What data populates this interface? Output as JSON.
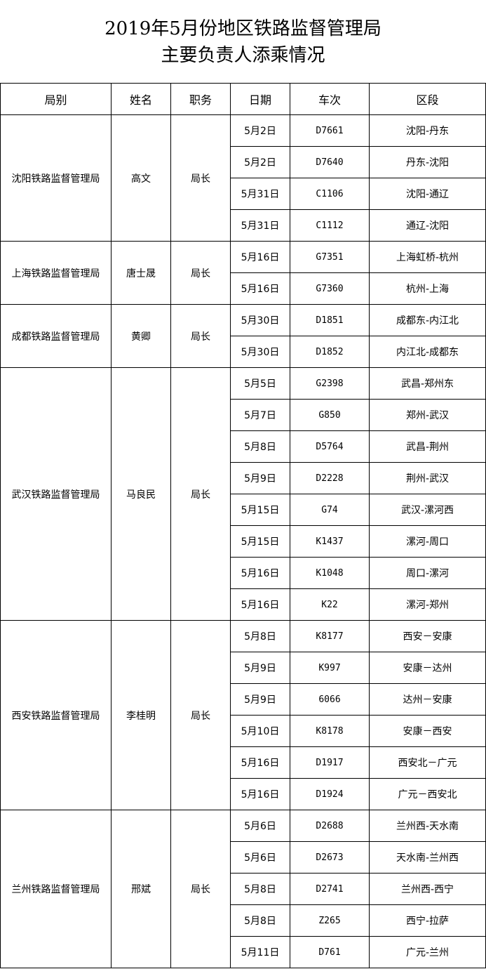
{
  "title": {
    "line1": "2019年5月份地区铁路监督管理局",
    "line2": "主要负责人添乘情况"
  },
  "headers": [
    "局别",
    "姓名",
    "职务",
    "日期",
    "车次",
    "区段"
  ],
  "groups": [
    {
      "bureau": "沈阳铁路监督管理局",
      "name": "高文",
      "position": "局长",
      "trips": [
        {
          "date": "5月2日",
          "train": "D7661",
          "section": "沈阳-丹东"
        },
        {
          "date": "5月2日",
          "train": "D7640",
          "section": "丹东-沈阳"
        },
        {
          "date": "5月31日",
          "train": "C1106",
          "section": "沈阳-通辽"
        },
        {
          "date": "5月31日",
          "train": "C1112",
          "section": "通辽-沈阳"
        }
      ]
    },
    {
      "bureau": "上海铁路监督管理局",
      "name": "唐士晟",
      "position": "局长",
      "trips": [
        {
          "date": "5月16日",
          "train": "G7351",
          "section": "上海虹桥-杭州"
        },
        {
          "date": "5月16日",
          "train": "G7360",
          "section": "杭州-上海"
        }
      ]
    },
    {
      "bureau": "成都铁路监督管理局",
      "name": "黄卿",
      "position": "局长",
      "trips": [
        {
          "date": "5月30日",
          "train": "D1851",
          "section": "成都东-内江北"
        },
        {
          "date": "5月30日",
          "train": "D1852",
          "section": "内江北-成都东"
        }
      ]
    },
    {
      "bureau": "武汉铁路监督管理局",
      "name": "马良民",
      "position": "局长",
      "trips": [
        {
          "date": "5月5日",
          "train": "G2398",
          "section": "武昌-郑州东"
        },
        {
          "date": "5月7日",
          "train": "G850",
          "section": "郑州-武汉"
        },
        {
          "date": "5月8日",
          "train": "D5764",
          "section": "武昌-荆州"
        },
        {
          "date": "5月9日",
          "train": "D2228",
          "section": "荆州-武汉"
        },
        {
          "date": "5月15日",
          "train": "G74",
          "section": "武汉-漯河西"
        },
        {
          "date": "5月15日",
          "train": "K1437",
          "section": "漯河-周口"
        },
        {
          "date": "5月16日",
          "train": "K1048",
          "section": "周口-漯河"
        },
        {
          "date": "5月16日",
          "train": "K22",
          "section": "漯河-郑州"
        }
      ]
    },
    {
      "bureau": "西安铁路监督管理局",
      "name": "李桂明",
      "position": "局长",
      "trips": [
        {
          "date": "5月8日",
          "train": "K8177",
          "section": "西安－安康"
        },
        {
          "date": "5月9日",
          "train": "K997",
          "section": "安康－达州"
        },
        {
          "date": "5月9日",
          "train": "6066",
          "section": "达州－安康"
        },
        {
          "date": "5月10日",
          "train": "K8178",
          "section": "安康－西安"
        },
        {
          "date": "5月16日",
          "train": "D1917",
          "section": "西安北－广元"
        },
        {
          "date": "5月16日",
          "train": "D1924",
          "section": "广元－西安北"
        }
      ]
    },
    {
      "bureau": "兰州铁路监督管理局",
      "name": "邢斌",
      "position": "局长",
      "trips": [
        {
          "date": "5月6日",
          "train": "D2688",
          "section": "兰州西-天水南"
        },
        {
          "date": "5月6日",
          "train": "D2673",
          "section": "天水南-兰州西"
        },
        {
          "date": "5月8日",
          "train": "D2741",
          "section": "兰州西-西宁"
        },
        {
          "date": "5月8日",
          "train": "Z265",
          "section": "西宁-拉萨"
        },
        {
          "date": "5月11日",
          "train": "D761",
          "section": "广元-兰州"
        }
      ]
    }
  ]
}
